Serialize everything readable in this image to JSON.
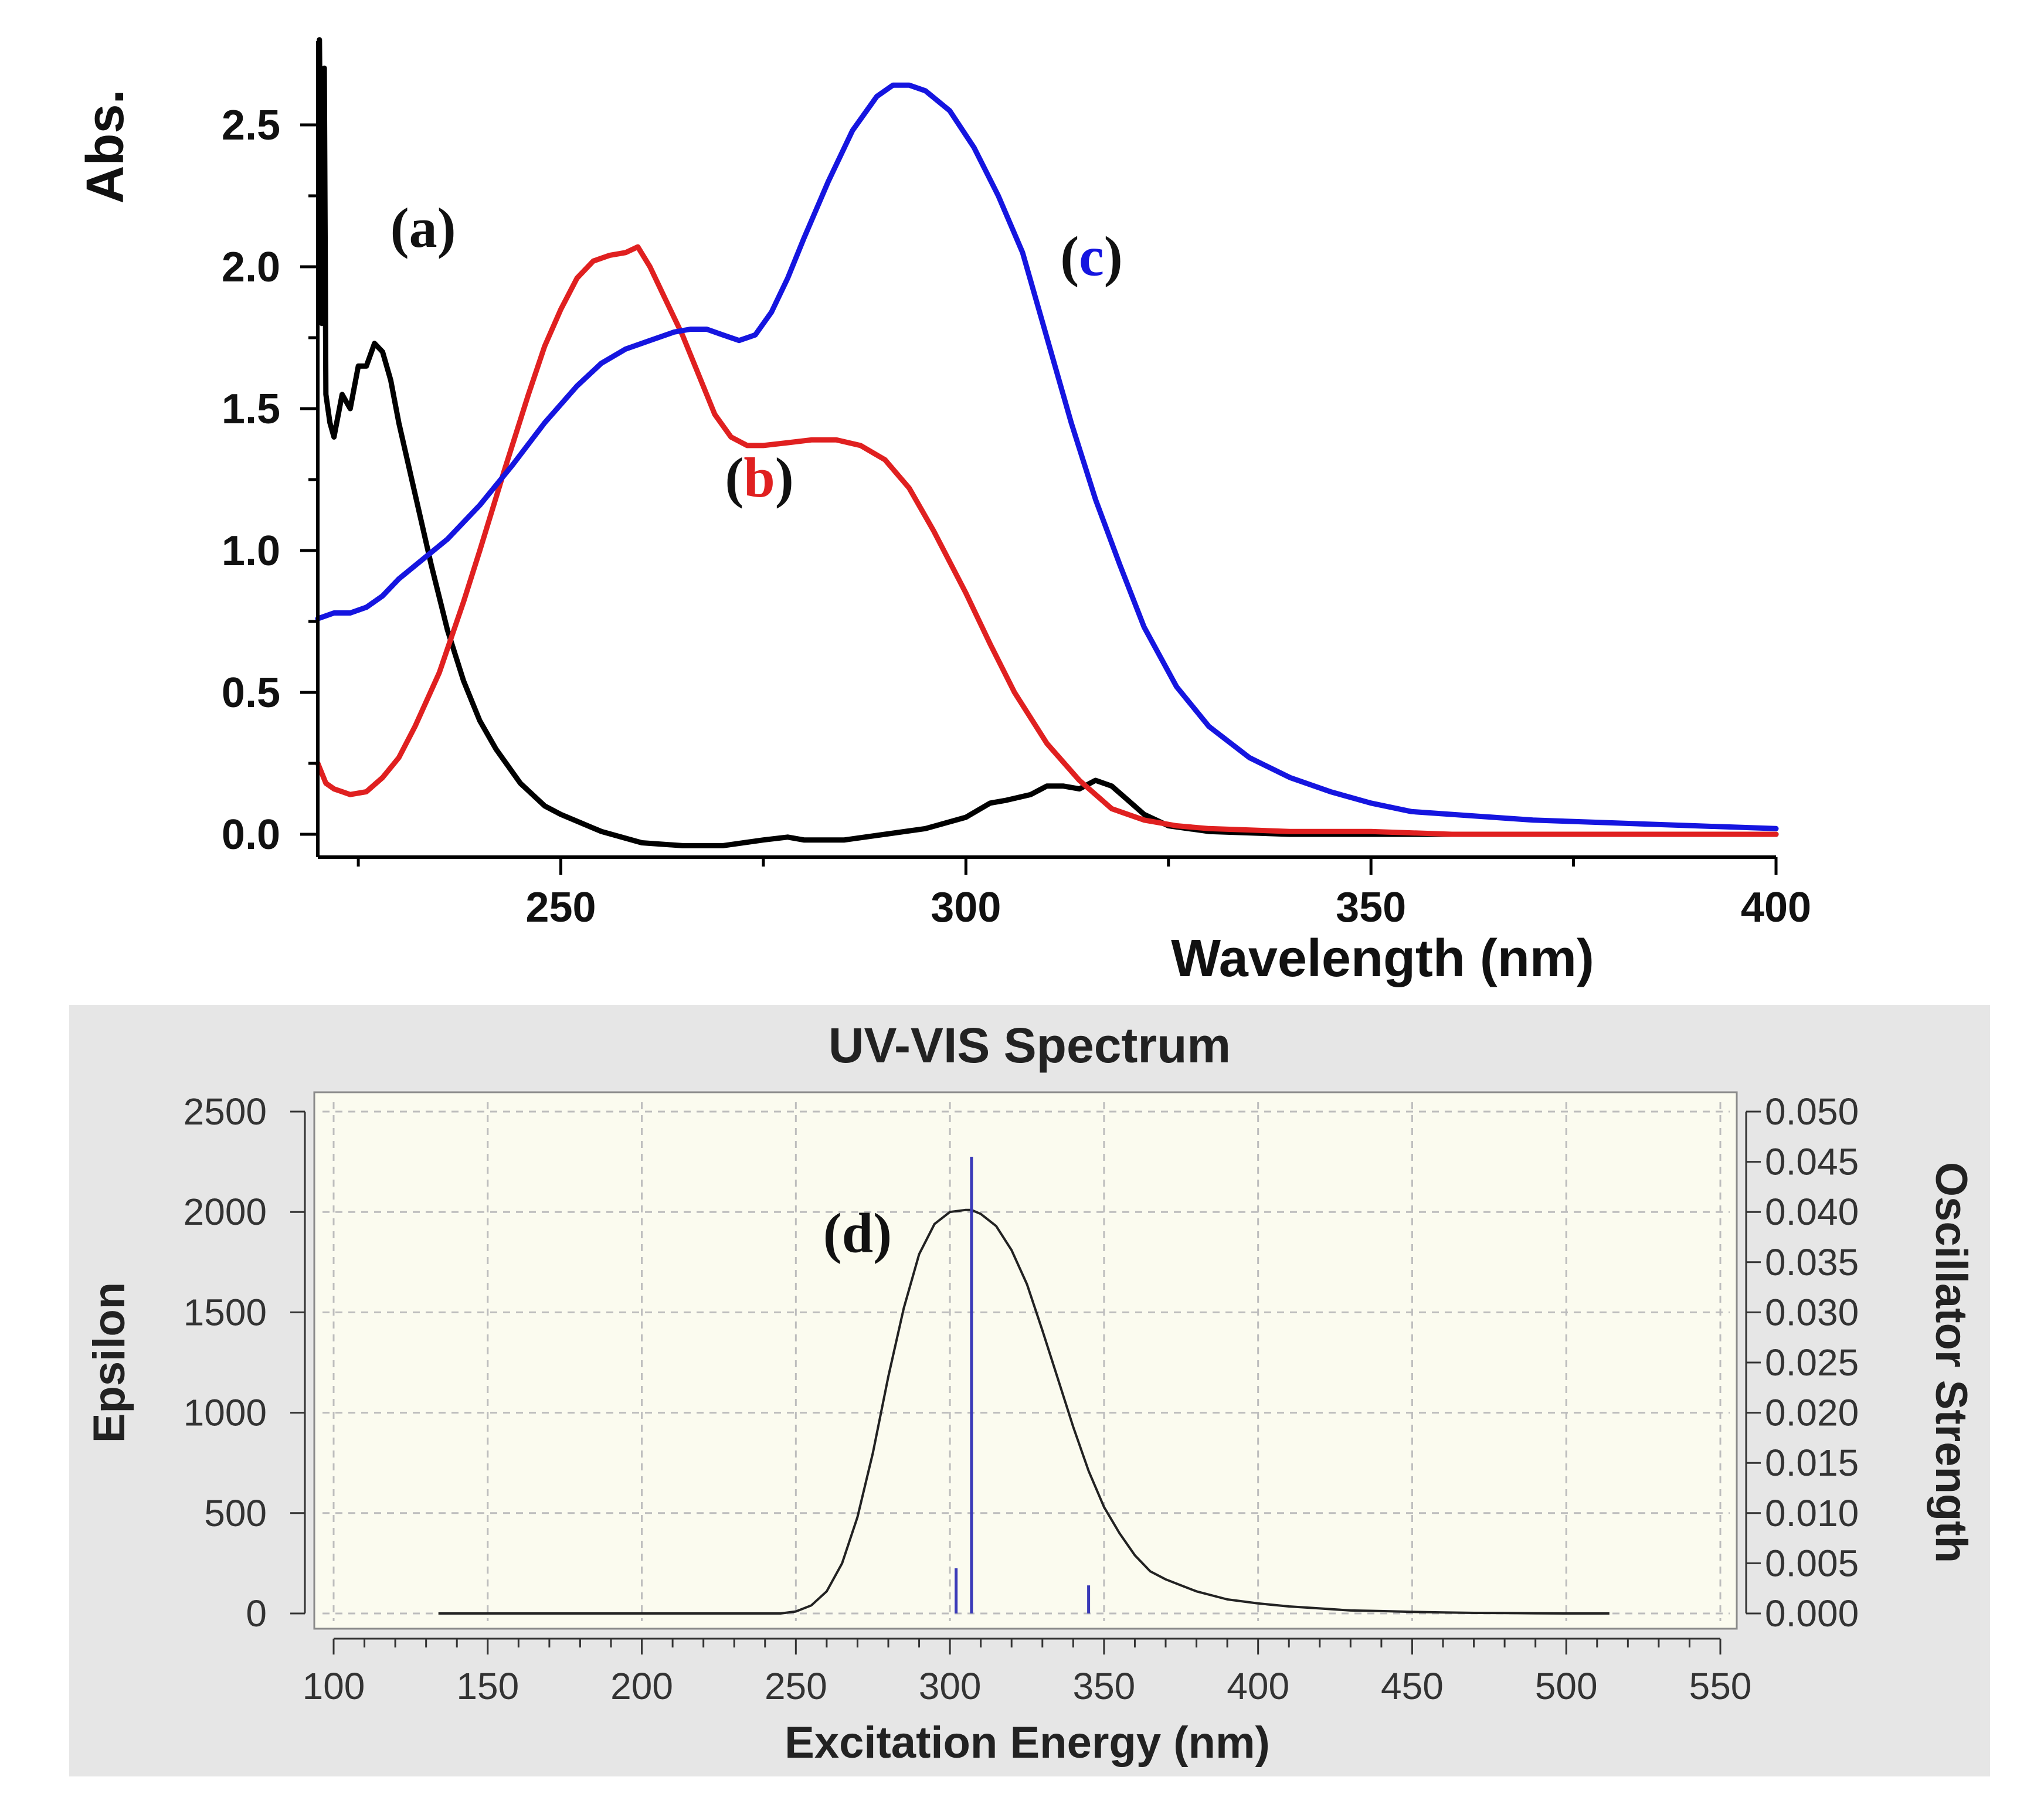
{
  "chart_data": [
    {
      "type": "line",
      "title": "",
      "xlabel": "Wavelength (nm)",
      "ylabel": "Abs.",
      "xlim": [
        220,
        400
      ],
      "ylim": [
        -0.1,
        2.75
      ],
      "x_ticks": [
        250,
        300,
        350,
        400
      ],
      "x_tick_labels": [
        "250",
        "300",
        "350",
        "400"
      ],
      "y_ticks": [
        0.0,
        0.5,
        1.0,
        1.5,
        2.0,
        2.5
      ],
      "y_tick_labels": [
        "0.0",
        "0.5",
        "1.0",
        "1.5",
        "2.0",
        "2.5"
      ],
      "series": [
        {
          "name": "(a)",
          "color": "#000000",
          "x": [
            220.2,
            220.5,
            220.8,
            221,
            221.5,
            222,
            223,
            224,
            225,
            226,
            227,
            228,
            229,
            230,
            232,
            234,
            236,
            238,
            240,
            242,
            245,
            248,
            250,
            255,
            260,
            265,
            270,
            275,
            278,
            280,
            285,
            290,
            295,
            300,
            303,
            305,
            308,
            310,
            312,
            314,
            316,
            318,
            320,
            322,
            325,
            330,
            340,
            350,
            360,
            380,
            400
          ],
          "values": [
            2.8,
            1.8,
            2.7,
            1.55,
            1.45,
            1.4,
            1.55,
            1.5,
            1.65,
            1.65,
            1.73,
            1.7,
            1.6,
            1.45,
            1.2,
            0.95,
            0.72,
            0.54,
            0.4,
            0.3,
            0.18,
            0.1,
            0.07,
            0.01,
            -0.03,
            -0.04,
            -0.04,
            -0.02,
            -0.01,
            -0.02,
            -0.02,
            0.0,
            0.02,
            0.06,
            0.11,
            0.12,
            0.14,
            0.17,
            0.17,
            0.16,
            0.19,
            0.17,
            0.12,
            0.07,
            0.03,
            0.01,
            0.0,
            0.0,
            0.0,
            0.0,
            0.0
          ]
        },
        {
          "name": "(b)",
          "color": "#e02020",
          "x": [
            220,
            221,
            222,
            223,
            224,
            226,
            228,
            230,
            232,
            235,
            238,
            240,
            243,
            246,
            248,
            250,
            252,
            254,
            256,
            258,
            259.5,
            261,
            263,
            265,
            267,
            269,
            271,
            273,
            275,
            278,
            281,
            284,
            287,
            290,
            293,
            296,
            300,
            303,
            306,
            310,
            314,
            318,
            322,
            326,
            330,
            340,
            350,
            360,
            380,
            400
          ],
          "values": [
            0.25,
            0.18,
            0.16,
            0.15,
            0.14,
            0.15,
            0.2,
            0.27,
            0.38,
            0.57,
            0.82,
            1.0,
            1.28,
            1.55,
            1.72,
            1.85,
            1.96,
            2.02,
            2.04,
            2.05,
            2.07,
            2.0,
            1.88,
            1.76,
            1.62,
            1.48,
            1.4,
            1.37,
            1.37,
            1.38,
            1.39,
            1.39,
            1.37,
            1.32,
            1.22,
            1.07,
            0.85,
            0.67,
            0.5,
            0.32,
            0.19,
            0.09,
            0.05,
            0.03,
            0.02,
            0.01,
            0.01,
            0.0,
            0.0,
            0.0
          ]
        },
        {
          "name": "(c)",
          "color": "#1515e0",
          "x": [
            220,
            222,
            224,
            226,
            228,
            230,
            233,
            236,
            240,
            244,
            248,
            252,
            255,
            258,
            261,
            264,
            266,
            268,
            270,
            272,
            274,
            276,
            278,
            280,
            283,
            286,
            289,
            291,
            293,
            295,
            298,
            301,
            304,
            307,
            310,
            313,
            316,
            319,
            322,
            326,
            330,
            335,
            340,
            345,
            350,
            355,
            360,
            370,
            380,
            390,
            400
          ],
          "values": [
            0.76,
            0.78,
            0.78,
            0.8,
            0.84,
            0.9,
            0.97,
            1.04,
            1.16,
            1.3,
            1.45,
            1.58,
            1.66,
            1.71,
            1.74,
            1.77,
            1.78,
            1.78,
            1.76,
            1.74,
            1.76,
            1.84,
            1.96,
            2.1,
            2.3,
            2.48,
            2.6,
            2.64,
            2.64,
            2.62,
            2.55,
            2.42,
            2.25,
            2.05,
            1.75,
            1.45,
            1.18,
            0.95,
            0.73,
            0.52,
            0.38,
            0.27,
            0.2,
            0.15,
            0.11,
            0.08,
            0.07,
            0.05,
            0.04,
            0.03,
            0.02
          ]
        }
      ],
      "annotations": [
        {
          "label": "(a)",
          "x": 233,
          "y": 2.07
        },
        {
          "label_open": "(",
          "label_letter": "b",
          "label_close": ")",
          "letter_color": "#e02020",
          "x": 274.5,
          "y": 1.19
        },
        {
          "label_open": "(",
          "label_letter": "c",
          "label_close": ")",
          "letter_color": "#1515e0",
          "x": 315.5,
          "y": 1.97
        }
      ]
    },
    {
      "type": "line",
      "title": "UV-VIS Spectrum",
      "xlabel": "Excitation Energy (nm)",
      "ylabel": "Epsilon",
      "y2label": "Oscillator Strength",
      "xlim": [
        100,
        550
      ],
      "ylim": [
        0,
        2500
      ],
      "y2lim": [
        0,
        0.05
      ],
      "x_ticks": [
        100,
        150,
        200,
        250,
        300,
        350,
        400,
        450,
        500,
        550
      ],
      "x_tick_labels": [
        "100",
        "150",
        "200",
        "250",
        "300",
        "350",
        "400",
        "450",
        "500",
        "550"
      ],
      "y_ticks": [
        0,
        500,
        1000,
        1500,
        2000,
        2500
      ],
      "y_tick_labels": [
        "0",
        "500",
        "1000",
        "1500",
        "2000",
        "2500"
      ],
      "y2_ticks": [
        0,
        0.005,
        0.01,
        0.015,
        0.02,
        0.025,
        0.03,
        0.035,
        0.04,
        0.045,
        0.05
      ],
      "y2_tick_labels": [
        "0.000",
        "0.005",
        "0.010",
        "0.015",
        "0.020",
        "0.025",
        "0.030",
        "0.035",
        "0.040",
        "0.045",
        "0.050"
      ],
      "series": [
        {
          "name": "Epsilon",
          "color": "#222222",
          "x": [
            134,
            200,
            245,
            250,
            255,
            260,
            265,
            270,
            275,
            280,
            285,
            290,
            295,
            300,
            305,
            307,
            310,
            315,
            320,
            325,
            330,
            335,
            340,
            345,
            350,
            355,
            360,
            365,
            370,
            375,
            380,
            390,
            400,
            410,
            420,
            430,
            440,
            450,
            460,
            470,
            480,
            490,
            500,
            514
          ],
          "values": [
            0,
            0,
            0,
            10,
            40,
            110,
            250,
            480,
            800,
            1180,
            1520,
            1790,
            1940,
            2000,
            2010,
            2010,
            1990,
            1930,
            1810,
            1640,
            1410,
            1170,
            930,
            710,
            530,
            400,
            290,
            210,
            170,
            140,
            110,
            70,
            50,
            35,
            25,
            15,
            12,
            8,
            5,
            3,
            2,
            1,
            0,
            0
          ]
        }
      ],
      "oscillator_sticks": [
        {
          "x": 302,
          "f": 0.0045
        },
        {
          "x": 307,
          "f": 0.0455
        },
        {
          "x": 345,
          "f": 0.0028
        }
      ],
      "annotations": [
        {
          "label": "(d)",
          "x": 270,
          "y": 1800
        }
      ]
    }
  ]
}
